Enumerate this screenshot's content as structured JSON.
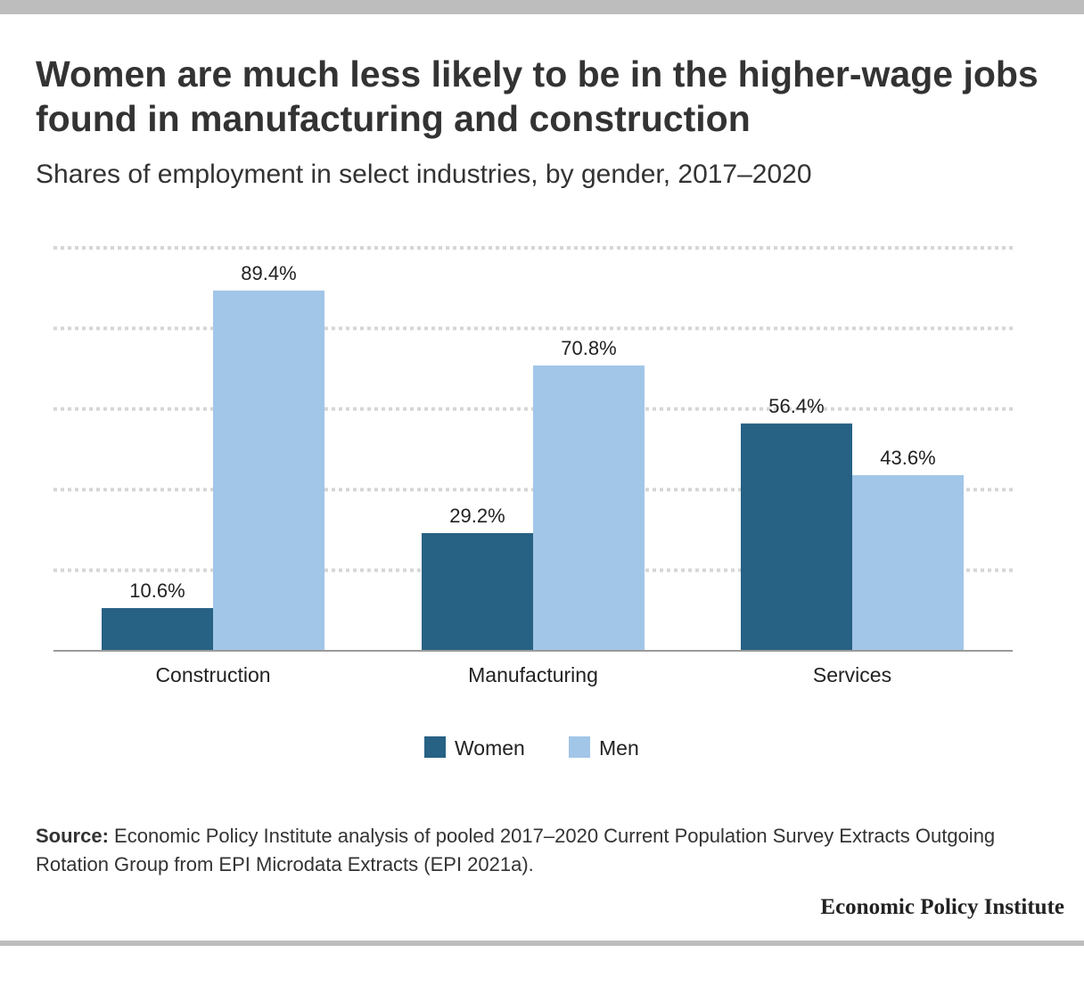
{
  "header": {
    "title": "Women are much less likely to be in the higher-wage jobs found in manufacturing and construction",
    "subtitle": "Shares of employment in select industries, by gender, 2017–2020"
  },
  "chart_data": {
    "type": "bar",
    "categories": [
      "Construction",
      "Manufacturing",
      "Services"
    ],
    "series": [
      {
        "name": "Women",
        "values": [
          10.6,
          29.2,
          56.4
        ],
        "labels": [
          "10.6%",
          "29.2%",
          "56.4%"
        ],
        "color": "#276184"
      },
      {
        "name": "Men",
        "values": [
          89.4,
          70.8,
          43.6
        ],
        "labels": [
          "89.4%",
          "70.8%",
          "43.6%"
        ],
        "color": "#a2c6e8"
      }
    ],
    "ylim": [
      0,
      100
    ],
    "grid": true,
    "legend": "bottom-center",
    "xlabel": "",
    "ylabel": ""
  },
  "footer": {
    "source_label": "Source:",
    "source_text": "Economic Policy Institute analysis of pooled 2017–2020 Current Population Survey Extracts Outgoing Rotation Group from EPI Microdata Extracts (EPI 2021a).",
    "brand": "Economic Policy Institute"
  }
}
